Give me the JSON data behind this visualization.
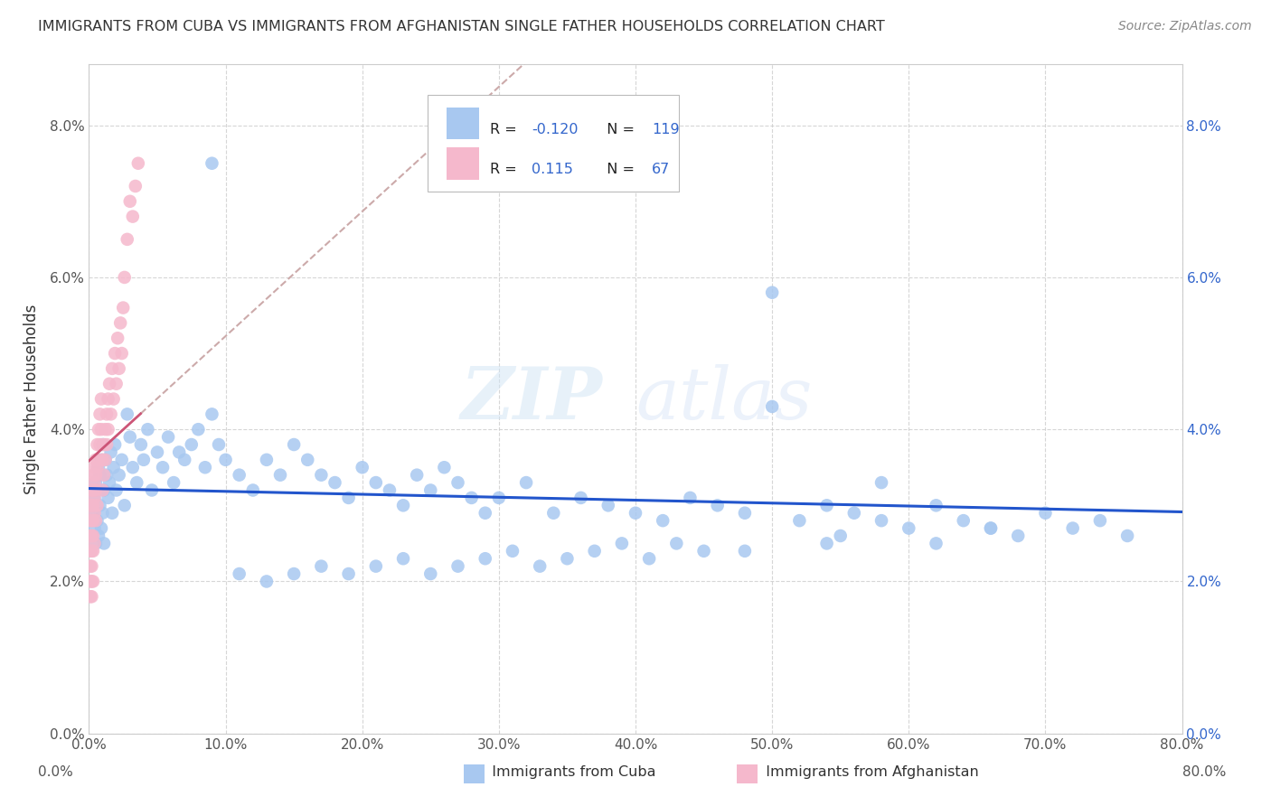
{
  "title": "IMMIGRANTS FROM CUBA VS IMMIGRANTS FROM AFGHANISTAN SINGLE FATHER HOUSEHOLDS CORRELATION CHART",
  "source": "Source: ZipAtlas.com",
  "ylabel": "Single Father Households",
  "legend_label_cuba": "Immigrants from Cuba",
  "legend_label_afghanistan": "Immigrants from Afghanistan",
  "cuba_R": -0.12,
  "cuba_N": 119,
  "afghanistan_R": 0.115,
  "afghanistan_N": 67,
  "xlim": [
    0.0,
    0.8
  ],
  "ylim": [
    0.0,
    0.088
  ],
  "x_ticks": [
    0.0,
    0.1,
    0.2,
    0.3,
    0.4,
    0.5,
    0.6,
    0.7,
    0.8
  ],
  "y_ticks": [
    0.0,
    0.02,
    0.04,
    0.06,
    0.08
  ],
  "color_cuba": "#a8c8f0",
  "color_afghanistan": "#f5b8cc",
  "trendline_cuba_color": "#2255cc",
  "trendline_afghanistan_color": "#cc5577",
  "trendline_dashed_color": "#ccaaaa",
  "watermark_zip": "ZIP",
  "watermark_atlas": "atlas",
  "cuba_x": [
    0.002,
    0.003,
    0.004,
    0.004,
    0.005,
    0.005,
    0.006,
    0.006,
    0.007,
    0.007,
    0.008,
    0.008,
    0.009,
    0.009,
    0.01,
    0.01,
    0.011,
    0.011,
    0.012,
    0.013,
    0.014,
    0.015,
    0.016,
    0.017,
    0.018,
    0.019,
    0.02,
    0.022,
    0.024,
    0.026,
    0.028,
    0.03,
    0.032,
    0.035,
    0.038,
    0.04,
    0.043,
    0.046,
    0.05,
    0.054,
    0.058,
    0.062,
    0.066,
    0.07,
    0.075,
    0.08,
    0.085,
    0.09,
    0.095,
    0.1,
    0.11,
    0.12,
    0.13,
    0.14,
    0.15,
    0.16,
    0.17,
    0.18,
    0.19,
    0.2,
    0.21,
    0.22,
    0.23,
    0.24,
    0.25,
    0.26,
    0.27,
    0.28,
    0.29,
    0.3,
    0.32,
    0.34,
    0.36,
    0.38,
    0.4,
    0.42,
    0.44,
    0.46,
    0.48,
    0.5,
    0.52,
    0.54,
    0.56,
    0.58,
    0.6,
    0.62,
    0.64,
    0.66,
    0.68,
    0.7,
    0.72,
    0.74,
    0.76,
    0.58,
    0.62,
    0.66,
    0.5,
    0.54,
    0.48,
    0.55,
    0.45,
    0.43,
    0.41,
    0.39,
    0.37,
    0.35,
    0.33,
    0.31,
    0.29,
    0.27,
    0.25,
    0.23,
    0.21,
    0.19,
    0.17,
    0.15,
    0.13,
    0.11,
    0.09
  ],
  "cuba_y": [
    0.03,
    0.029,
    0.031,
    0.027,
    0.033,
    0.025,
    0.032,
    0.028,
    0.035,
    0.026,
    0.034,
    0.03,
    0.036,
    0.027,
    0.038,
    0.029,
    0.032,
    0.025,
    0.036,
    0.034,
    0.031,
    0.033,
    0.037,
    0.029,
    0.035,
    0.038,
    0.032,
    0.034,
    0.036,
    0.03,
    0.042,
    0.039,
    0.035,
    0.033,
    0.038,
    0.036,
    0.04,
    0.032,
    0.037,
    0.035,
    0.039,
    0.033,
    0.037,
    0.036,
    0.038,
    0.04,
    0.035,
    0.042,
    0.038,
    0.036,
    0.034,
    0.032,
    0.036,
    0.034,
    0.038,
    0.036,
    0.034,
    0.033,
    0.031,
    0.035,
    0.033,
    0.032,
    0.03,
    0.034,
    0.032,
    0.035,
    0.033,
    0.031,
    0.029,
    0.031,
    0.033,
    0.029,
    0.031,
    0.03,
    0.029,
    0.028,
    0.031,
    0.03,
    0.029,
    0.043,
    0.028,
    0.03,
    0.029,
    0.028,
    0.027,
    0.03,
    0.028,
    0.027,
    0.026,
    0.029,
    0.027,
    0.028,
    0.026,
    0.033,
    0.025,
    0.027,
    0.058,
    0.025,
    0.024,
    0.026,
    0.024,
    0.025,
    0.023,
    0.025,
    0.024,
    0.023,
    0.022,
    0.024,
    0.023,
    0.022,
    0.021,
    0.023,
    0.022,
    0.021,
    0.022,
    0.021,
    0.02,
    0.021,
    0.075
  ],
  "afghanistan_x": [
    0.001,
    0.001,
    0.001,
    0.001,
    0.001,
    0.001,
    0.001,
    0.002,
    0.002,
    0.002,
    0.002,
    0.002,
    0.002,
    0.002,
    0.002,
    0.003,
    0.003,
    0.003,
    0.003,
    0.003,
    0.003,
    0.003,
    0.004,
    0.004,
    0.004,
    0.004,
    0.004,
    0.005,
    0.005,
    0.005,
    0.005,
    0.006,
    0.006,
    0.006,
    0.007,
    0.007,
    0.008,
    0.008,
    0.009,
    0.009,
    0.01,
    0.01,
    0.011,
    0.011,
    0.012,
    0.012,
    0.013,
    0.013,
    0.014,
    0.014,
    0.015,
    0.016,
    0.017,
    0.018,
    0.019,
    0.02,
    0.021,
    0.022,
    0.023,
    0.024,
    0.025,
    0.026,
    0.028,
    0.03,
    0.032,
    0.034,
    0.036
  ],
  "afghanistan_y": [
    0.03,
    0.028,
    0.026,
    0.024,
    0.022,
    0.02,
    0.018,
    0.032,
    0.03,
    0.028,
    0.026,
    0.024,
    0.022,
    0.02,
    0.018,
    0.034,
    0.032,
    0.03,
    0.028,
    0.026,
    0.024,
    0.02,
    0.035,
    0.033,
    0.031,
    0.029,
    0.025,
    0.036,
    0.034,
    0.032,
    0.028,
    0.038,
    0.035,
    0.03,
    0.04,
    0.036,
    0.042,
    0.038,
    0.044,
    0.04,
    0.036,
    0.032,
    0.038,
    0.034,
    0.04,
    0.036,
    0.042,
    0.038,
    0.044,
    0.04,
    0.046,
    0.042,
    0.048,
    0.044,
    0.05,
    0.046,
    0.052,
    0.048,
    0.054,
    0.05,
    0.056,
    0.06,
    0.065,
    0.07,
    0.068,
    0.072,
    0.075
  ]
}
